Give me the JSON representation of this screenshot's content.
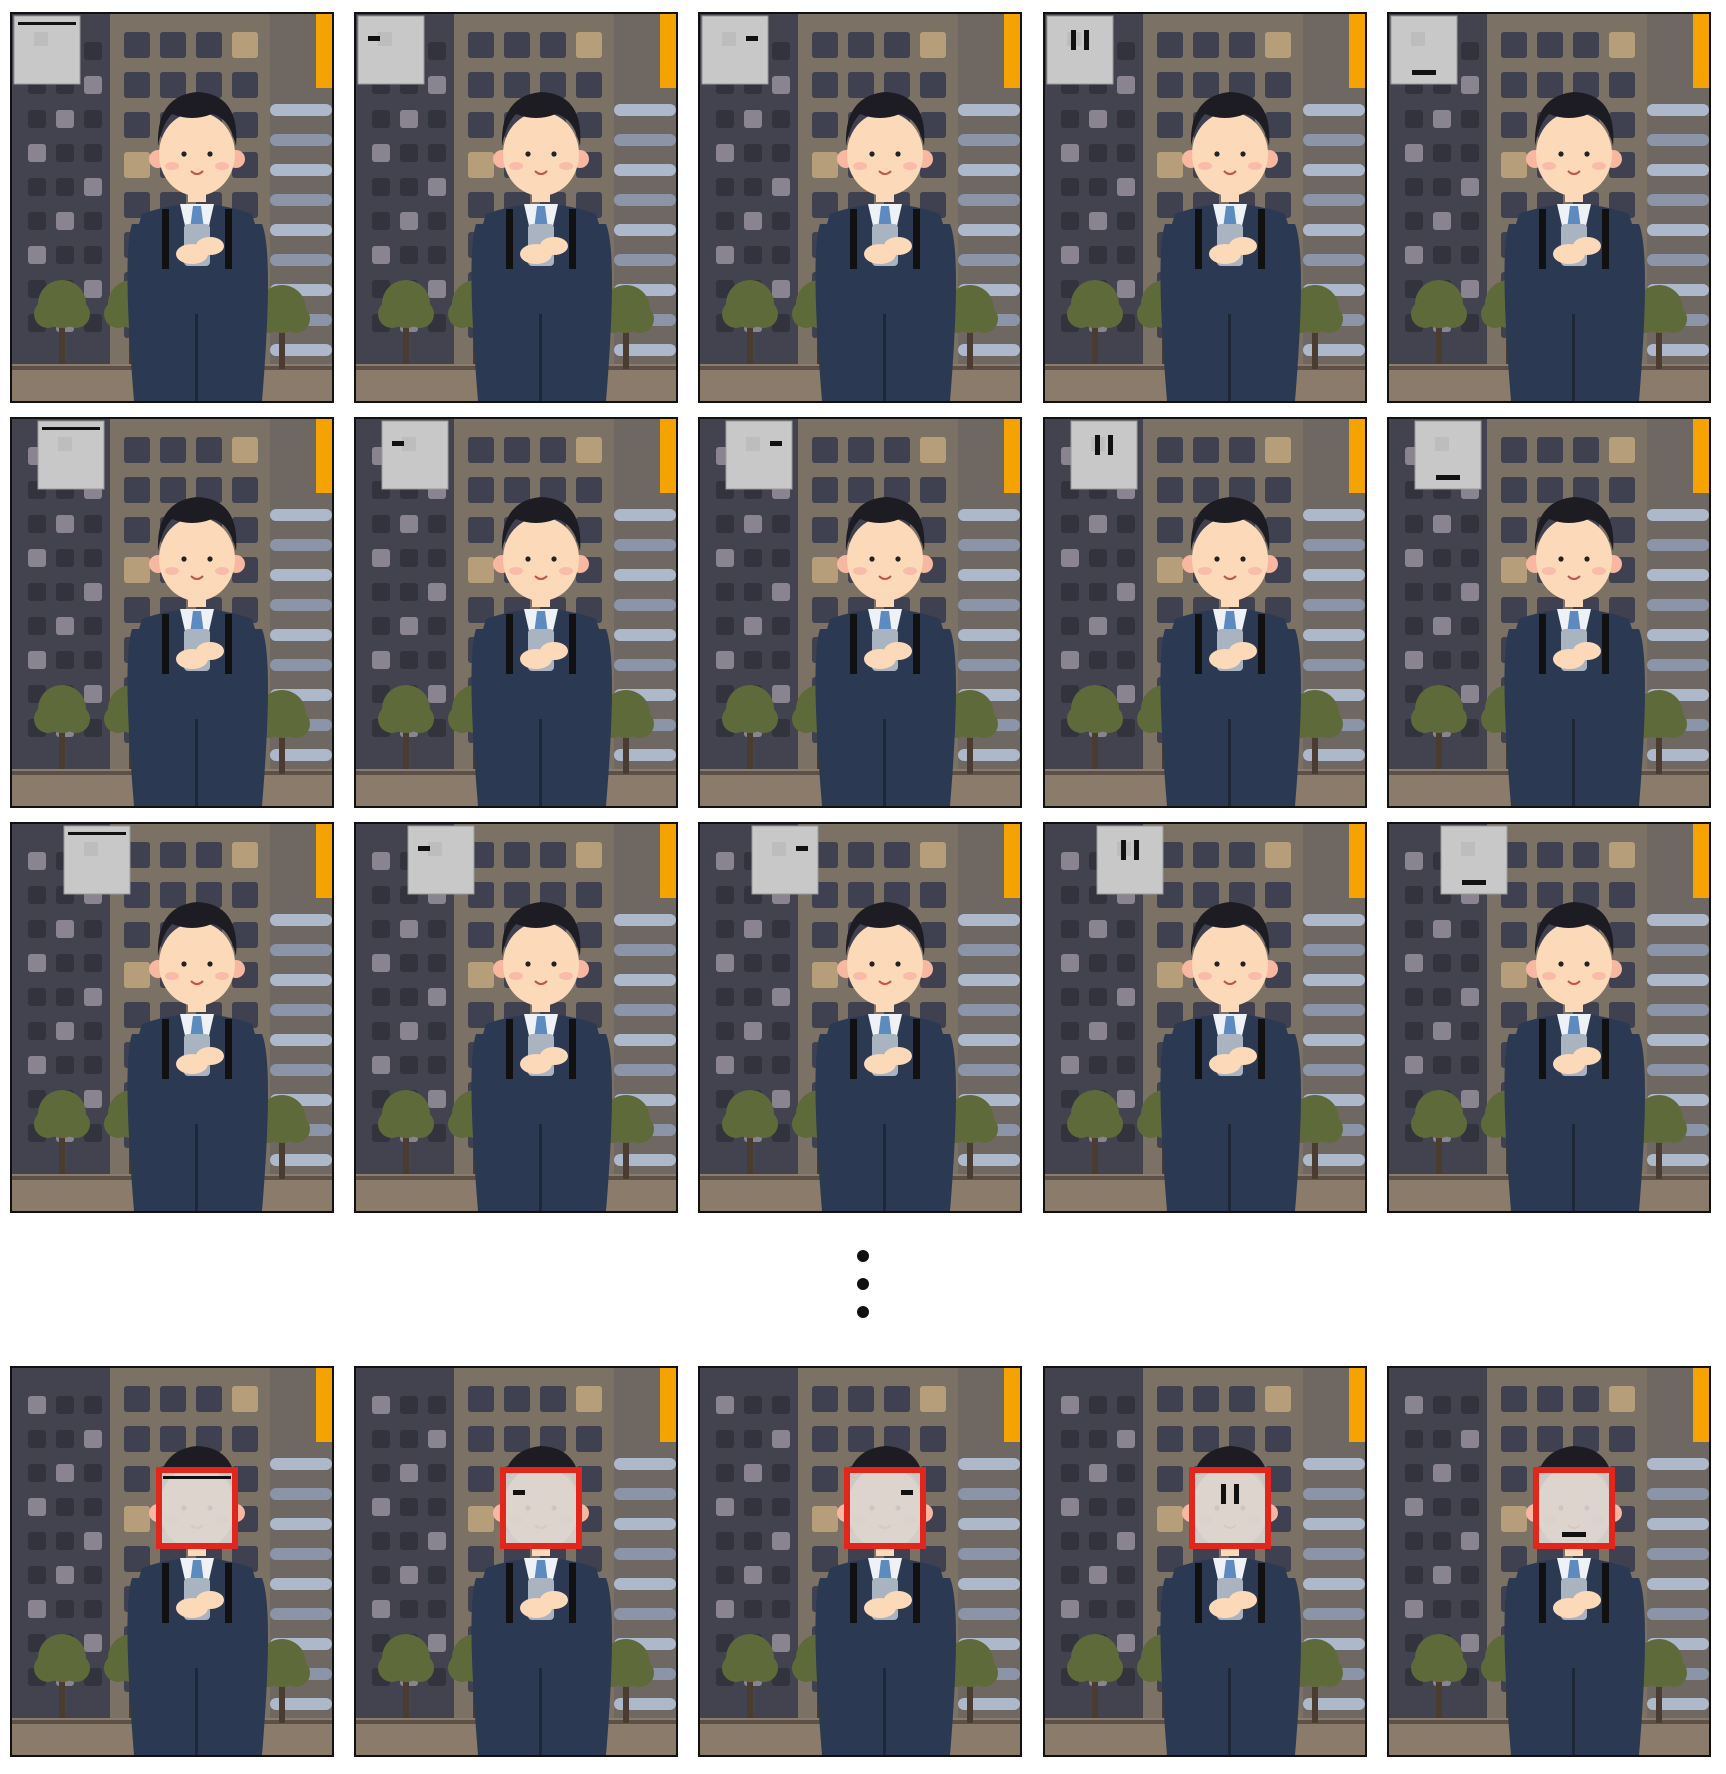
{
  "figure": {
    "rows": [
      {
        "row_id": "row-1",
        "patch_position": "top-left-1",
        "detected": false
      },
      {
        "row_id": "row-2",
        "patch_position": "top-left-2",
        "detected": false
      },
      {
        "row_id": "row-3",
        "patch_position": "top-left-3",
        "detected": false
      },
      {
        "row_id": "row-final",
        "patch_position": "on-face",
        "detected": true
      }
    ],
    "columns": [
      {
        "pattern": "top-line"
      },
      {
        "pattern": "left-dash"
      },
      {
        "pattern": "right-dash"
      },
      {
        "pattern": "vertical-bars"
      },
      {
        "pattern": "bottom-dash"
      }
    ],
    "ellipsis": "vertical-dots",
    "colors": {
      "frame": "#111111",
      "detection_box": "#e2261c",
      "patch": "#c8c8c8",
      "pattern": "#111111",
      "building_dark": "#43434f",
      "building_light": "#7b7165",
      "suit": "#2b3a52",
      "skin": "#fcd9b8",
      "hair": "#1c1c22",
      "tree": "#5f6a3b",
      "accent": "#f5a300"
    }
  }
}
